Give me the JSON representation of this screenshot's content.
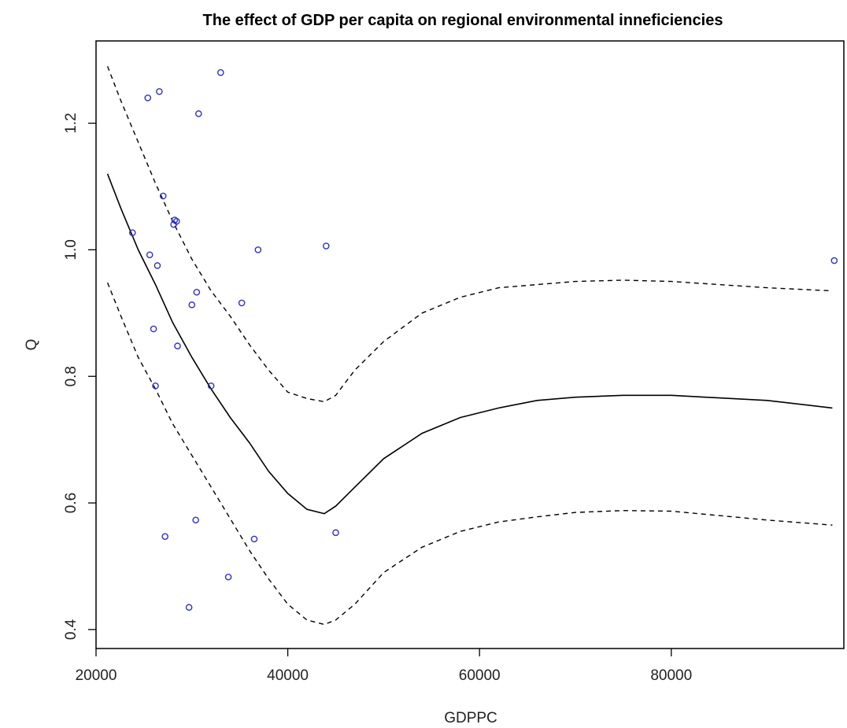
{
  "chart_data": {
    "type": "scatter",
    "title": "The effect of GDP per capita on regional environmental inneficiencies",
    "xlabel": "GDPPC",
    "ylabel": "Q",
    "xlim": [
      20000,
      98000
    ],
    "ylim": [
      0.37,
      1.33
    ],
    "xticks": [
      20000,
      40000,
      60000,
      80000
    ],
    "yticks": [
      0.4,
      0.6,
      0.8,
      1.0,
      1.2
    ],
    "xtick_labels": [
      "20000",
      "40000",
      "60000",
      "80000"
    ],
    "ytick_labels": [
      "0.4",
      "0.6",
      "0.8",
      "1.0",
      "1.2"
    ],
    "grid": false,
    "legend": "none",
    "colors": {
      "points": "#3030c8",
      "lines": "#000000"
    },
    "series": [
      {
        "kind": "points",
        "x": [
          23800,
          25400,
          25600,
          26000,
          26200,
          26400,
          26600,
          27000,
          27200,
          28100,
          28200,
          28400,
          28500,
          29700,
          30000,
          30400,
          30500,
          30700,
          32000,
          33000,
          33800,
          35200,
          36500,
          36900,
          44000,
          45000,
          97000
        ],
        "y": [
          1.027,
          1.24,
          0.992,
          0.875,
          0.785,
          0.975,
          1.25,
          1.085,
          0.547,
          1.04,
          1.047,
          1.045,
          0.848,
          0.435,
          0.913,
          0.573,
          0.933,
          1.215,
          0.785,
          1.28,
          0.483,
          0.916,
          0.543,
          1.0,
          1.006,
          0.553,
          0.983
        ]
      },
      {
        "kind": "fit-line",
        "x": [
          21200,
          22600,
          24400,
          26200,
          28000,
          30000,
          32000,
          34000,
          36000,
          38000,
          40000,
          42000,
          43800,
          45000,
          47000,
          50000,
          54000,
          58000,
          62000,
          66000,
          70000,
          75000,
          80000,
          85000,
          90000,
          96800
        ],
        "y": [
          1.12,
          1.065,
          1.0,
          0.945,
          0.885,
          0.83,
          0.78,
          0.735,
          0.695,
          0.65,
          0.615,
          0.59,
          0.583,
          0.595,
          0.625,
          0.67,
          0.71,
          0.735,
          0.75,
          0.762,
          0.767,
          0.77,
          0.77,
          0.766,
          0.762,
          0.75
        ]
      },
      {
        "kind": "upper-band",
        "x": [
          21200,
          22600,
          24400,
          26200,
          28000,
          30000,
          32000,
          34000,
          36000,
          38000,
          40000,
          42000,
          43800,
          45000,
          47000,
          50000,
          54000,
          58000,
          62000,
          66000,
          70000,
          75000,
          80000,
          85000,
          90000,
          96800
        ],
        "y": [
          1.29,
          1.235,
          1.17,
          1.105,
          1.045,
          0.985,
          0.935,
          0.895,
          0.85,
          0.81,
          0.775,
          0.765,
          0.76,
          0.77,
          0.81,
          0.855,
          0.9,
          0.925,
          0.94,
          0.945,
          0.95,
          0.952,
          0.95,
          0.945,
          0.94,
          0.935
        ]
      },
      {
        "kind": "lower-band",
        "x": [
          21200,
          22600,
          24400,
          26200,
          28000,
          30000,
          32000,
          34000,
          36000,
          38000,
          40000,
          42000,
          43800,
          45000,
          47000,
          50000,
          54000,
          58000,
          62000,
          66000,
          70000,
          75000,
          80000,
          85000,
          90000,
          96800
        ],
        "y": [
          0.948,
          0.895,
          0.83,
          0.78,
          0.725,
          0.675,
          0.625,
          0.575,
          0.525,
          0.48,
          0.44,
          0.415,
          0.408,
          0.415,
          0.44,
          0.49,
          0.53,
          0.555,
          0.57,
          0.578,
          0.585,
          0.588,
          0.587,
          0.58,
          0.573,
          0.565
        ]
      }
    ]
  }
}
